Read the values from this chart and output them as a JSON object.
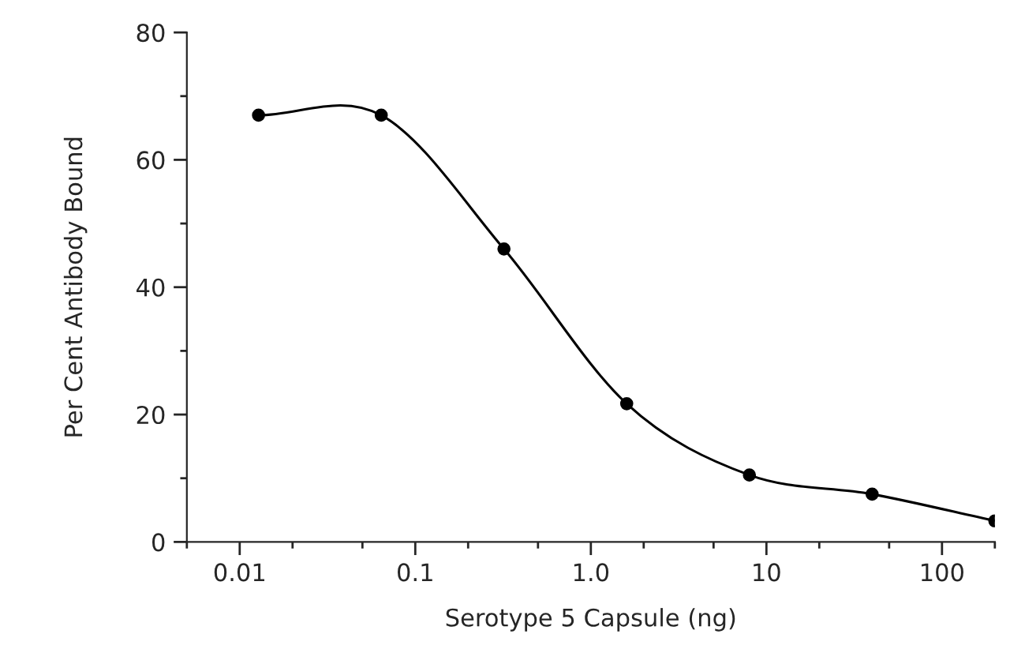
{
  "chart_data": {
    "type": "line",
    "xlabel": "Serotype 5 Capsule (ng)",
    "ylabel": "Per Cent Antibody Bound",
    "x": [
      0.0128,
      0.064,
      0.32,
      1.6,
      8,
      40,
      200
    ],
    "series": [
      {
        "color": "#000000",
        "values": [
          67,
          67,
          46,
          21.7,
          10.5,
          7.5,
          3.3
        ]
      }
    ],
    "log": "x",
    "marker": "circle",
    "line_style": "solid",
    "grid": false,
    "legend": false,
    "xlim": [
      0.005,
      200
    ],
    "xticks": [
      {
        "value": 0.005,
        "label": null
      },
      {
        "value": 0.01,
        "label": "0.01"
      },
      {
        "value": 0.02,
        "label": null
      },
      {
        "value": 0.05,
        "label": null
      },
      {
        "value": 0.1,
        "label": "0.1"
      },
      {
        "value": 0.2,
        "label": null
      },
      {
        "value": 0.5,
        "label": null
      },
      {
        "value": 1,
        "label": "1.0"
      },
      {
        "value": 2,
        "label": null
      },
      {
        "value": 5,
        "label": null
      },
      10,
      {
        "value": 20,
        "label": null
      },
      {
        "value": 50,
        "label": null
      },
      100,
      {
        "value": 200,
        "label": null
      }
    ],
    "ylim": [
      0,
      80
    ],
    "yticks": [
      0,
      {
        "value": 10,
        "label": null
      },
      20,
      {
        "value": 30,
        "label": null
      },
      40,
      {
        "value": 50,
        "label": null
      },
      60,
      {
        "value": 70,
        "label": null
      },
      80
    ]
  }
}
